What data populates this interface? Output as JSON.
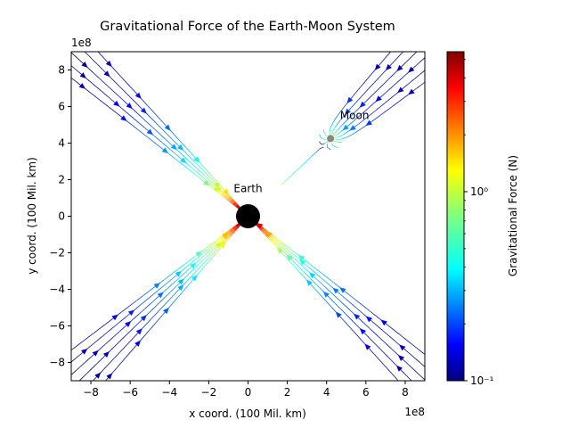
{
  "chart_data": {
    "type": "streamplot",
    "title": "Gravitational Force of the Earth-Moon System",
    "xlabel": "x coord. (100 Mil. km)",
    "ylabel": "y coord. (100 Mil. km)",
    "x_offset_label": "1e8",
    "y_offset_label": "1e8",
    "xlim": [
      -9,
      9
    ],
    "ylim": [
      -9,
      9
    ],
    "xticks": [
      "−8",
      "−6",
      "−4",
      "−2",
      "0",
      "2",
      "4",
      "6",
      "8"
    ],
    "yticks": [
      "−8",
      "−6",
      "−4",
      "−2",
      "0",
      "2",
      "4",
      "6",
      "8"
    ],
    "xtick_values": [
      -8,
      -6,
      -4,
      -2,
      0,
      2,
      4,
      6,
      8
    ],
    "ytick_values": [
      -8,
      -6,
      -4,
      -2,
      0,
      2,
      4,
      6,
      8
    ],
    "grid": false,
    "colormap": "jet",
    "colorbar": {
      "label": "Gravitational Force (N)",
      "scale": "log",
      "range": [
        0.1,
        5.5
      ],
      "ticks": [
        {
          "value": 1,
          "label": "10⁰"
        },
        {
          "value": 0.1,
          "label": "10⁻¹"
        }
      ]
    },
    "bodies": [
      {
        "name": "Earth",
        "x": 0,
        "y": 0,
        "color": "#000000"
      },
      {
        "name": "Moon",
        "x": 4.2,
        "y": 4.25,
        "color": "#808080"
      }
    ]
  }
}
